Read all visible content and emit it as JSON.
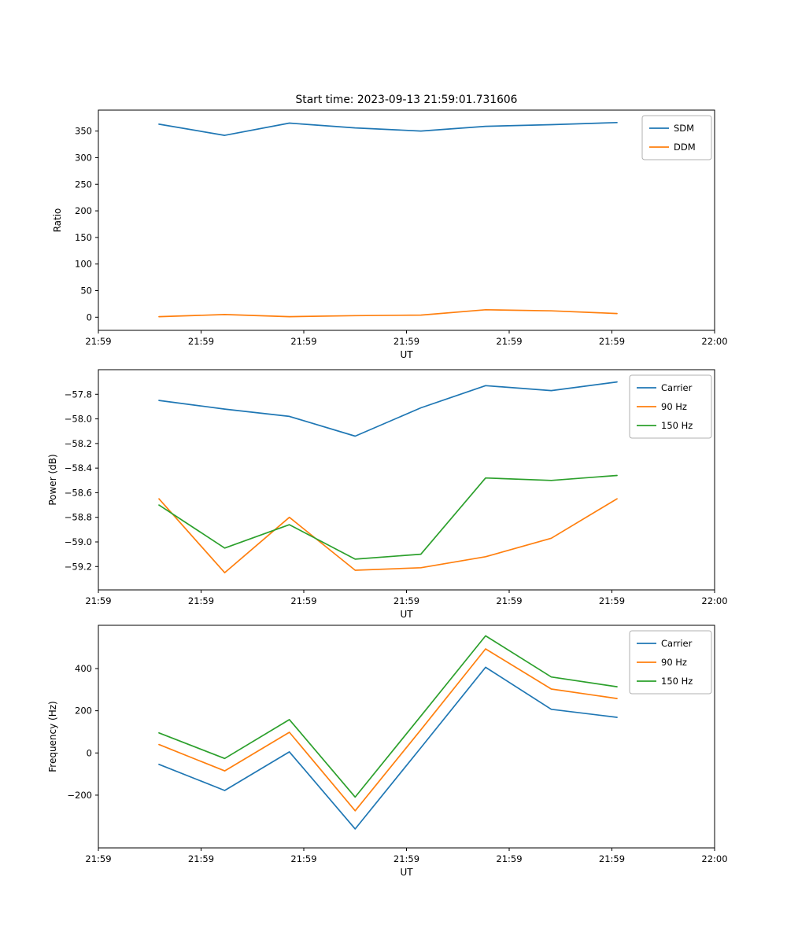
{
  "figure_title": "Start time: 2023-09-13 21:59:01.731606",
  "chart_data": [
    {
      "type": "line",
      "title": "Start time: 2023-09-13 21:59:01.731606",
      "xlabel": "UT",
      "ylabel": "Ratio",
      "grid": false,
      "legend_position": "upper right",
      "x": [
        5.9,
        12.3,
        18.6,
        25.0,
        31.4,
        37.7,
        44.1,
        50.5
      ],
      "xlim": [
        0,
        60
      ],
      "xtick_values": [
        0,
        10,
        20,
        30,
        40,
        50,
        60
      ],
      "xtick_labels": [
        "21:59",
        "21:59",
        "21:59",
        "21:59",
        "21:59",
        "21:59",
        "22:00"
      ],
      "ylim": [
        -24.7,
        389.4
      ],
      "ytick_values": [
        0,
        50,
        100,
        150,
        200,
        250,
        300,
        350
      ],
      "ytick_labels": [
        "0",
        "50",
        "100",
        "150",
        "200",
        "250",
        "300",
        "350"
      ],
      "series": [
        {
          "name": "SDM",
          "color": "#1f77b4",
          "values": [
            363,
            342,
            365,
            356,
            350,
            359,
            362,
            366
          ]
        },
        {
          "name": "DDM",
          "color": "#ff7f0e",
          "values": [
            1,
            5,
            1,
            3,
            4,
            14,
            12,
            7
          ]
        }
      ]
    },
    {
      "type": "line",
      "title": "",
      "xlabel": "UT",
      "ylabel": "Power (dB)",
      "grid": false,
      "legend_position": "upper right",
      "x": [
        5.9,
        12.3,
        18.6,
        25.0,
        31.4,
        37.7,
        44.1,
        50.5
      ],
      "xlim": [
        0,
        60
      ],
      "xtick_values": [
        0,
        10,
        20,
        30,
        40,
        50,
        60
      ],
      "xtick_labels": [
        "21:59",
        "21:59",
        "21:59",
        "21:59",
        "21:59",
        "21:59",
        "22:00"
      ],
      "ylim": [
        -59.39,
        -57.6
      ],
      "ytick_values": [
        -59.2,
        -59.0,
        -58.8,
        -58.6,
        -58.4,
        -58.2,
        -58.0,
        -57.8
      ],
      "ytick_labels": [
        "−59.2",
        "−59.0",
        "−58.8",
        "−58.6",
        "−58.4",
        "−58.2",
        "−58.0",
        "−57.8"
      ],
      "series": [
        {
          "name": "Carrier",
          "color": "#1f77b4",
          "values": [
            -57.85,
            -57.92,
            -57.98,
            -58.14,
            -57.91,
            -57.73,
            -57.77,
            -57.7
          ]
        },
        {
          "name": "90 Hz",
          "color": "#ff7f0e",
          "values": [
            -58.65,
            -59.25,
            -58.8,
            -59.23,
            -59.21,
            -59.12,
            -58.97,
            -58.65
          ]
        },
        {
          "name": "150 Hz",
          "color": "#2ca02c",
          "values": [
            -58.7,
            -59.05,
            -58.86,
            -59.14,
            -59.1,
            -58.48,
            -58.5,
            -58.46
          ]
        }
      ]
    },
    {
      "type": "line",
      "title": "",
      "xlabel": "UT",
      "ylabel": "Frequency (Hz)",
      "grid": false,
      "legend_position": "upper right",
      "x": [
        5.9,
        12.3,
        18.6,
        25.0,
        31.4,
        37.7,
        44.1,
        50.5
      ],
      "xlim": [
        0,
        60
      ],
      "xtick_values": [
        0,
        10,
        20,
        30,
        40,
        50,
        60
      ],
      "xtick_labels": [
        "21:59",
        "21:59",
        "21:59",
        "21:59",
        "21:59",
        "21:59",
        "22:00"
      ],
      "ylim": [
        -450,
        605
      ],
      "ytick_values": [
        -200,
        0,
        200,
        400
      ],
      "ytick_labels": [
        "−200",
        "0",
        "200",
        "400"
      ],
      "series": [
        {
          "name": "Carrier",
          "color": "#1f77b4",
          "values": [
            -54,
            -178,
            5,
            -360,
            25,
            406,
            207,
            169
          ]
        },
        {
          "name": "90 Hz",
          "color": "#ff7f0e",
          "values": [
            40,
            -85,
            98,
            -274,
            110,
            493,
            303,
            258
          ]
        },
        {
          "name": "150 Hz",
          "color": "#2ca02c",
          "values": [
            95,
            -26,
            158,
            -209,
            175,
            555,
            360,
            314
          ]
        }
      ]
    }
  ]
}
